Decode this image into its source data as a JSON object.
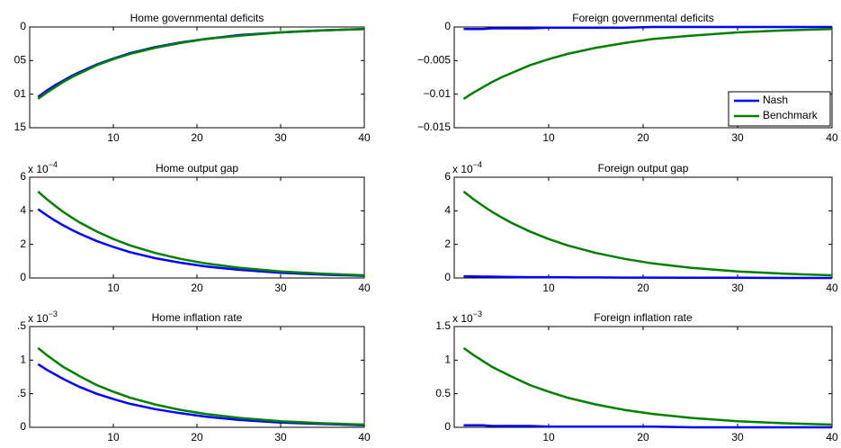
{
  "chart_data": [
    {
      "type": "line",
      "title": "Home governmental deficits",
      "x": [
        1,
        2,
        3,
        4,
        5,
        6,
        8,
        10,
        12,
        15,
        18,
        21,
        25,
        30,
        35,
        40
      ],
      "series": [
        {
          "color": "#0000ff",
          "values": [
            -0.0104,
            -0.0095,
            -0.0087,
            -0.008,
            -0.0073,
            -0.0067,
            -0.0056,
            -0.0047,
            -0.0039,
            -0.003,
            -0.0023,
            -0.0018,
            -0.0012,
            -0.0008,
            -0.0005,
            -0.0003
          ]
        },
        {
          "color": "#008000",
          "values": [
            -0.0107,
            -0.0098,
            -0.009,
            -0.0082,
            -0.0075,
            -0.0069,
            -0.0057,
            -0.0048,
            -0.004,
            -0.0031,
            -0.0024,
            -0.0018,
            -0.0013,
            -0.0008,
            -0.0005,
            -0.0003
          ]
        }
      ],
      "xlim": [
        0,
        40
      ],
      "xticks": [
        10,
        20,
        30,
        40
      ],
      "ylim": [
        -0.015,
        0
      ],
      "yticks": [
        {
          "value": -0.015,
          "label": "15"
        },
        {
          "value": -0.01,
          "label": "01"
        },
        {
          "value": -0.005,
          "label": "05"
        },
        0
      ]
    },
    {
      "type": "line",
      "title": "Foreign governmental deficits",
      "x": [
        1,
        2,
        3,
        4,
        5,
        6,
        8,
        10,
        12,
        15,
        18,
        21,
        25,
        30,
        35,
        40
      ],
      "series": [
        {
          "name": "Nash",
          "color": "#0000ff",
          "values": [
            -0.0003,
            -0.0003,
            -0.0003,
            -0.0002,
            -0.0002,
            -0.0002,
            -0.0002,
            -0.0001,
            -0.0001,
            -0.0001,
            -0.0001,
            0,
            0,
            0,
            0,
            0
          ]
        },
        {
          "name": "Benchmark",
          "color": "#008000",
          "values": [
            -0.0107,
            -0.0098,
            -0.009,
            -0.0082,
            -0.0075,
            -0.0069,
            -0.0057,
            -0.0048,
            -0.004,
            -0.0031,
            -0.0024,
            -0.0018,
            -0.0013,
            -0.0008,
            -0.0005,
            -0.0003
          ]
        }
      ],
      "xlim": [
        0,
        40
      ],
      "xticks": [
        10,
        20,
        30,
        40
      ],
      "ylim": [
        -0.015,
        0
      ],
      "yticks": [
        {
          "value": -0.015,
          "label": "−0.015"
        },
        {
          "value": -0.01,
          "label": "−0.01"
        },
        {
          "value": -0.005,
          "label": "−0.005"
        },
        0
      ],
      "legend": "southeast"
    },
    {
      "type": "line",
      "title": "Home output gap",
      "exponent_base": "x 10",
      "exponent_power": "−4",
      "x": [
        1,
        2,
        3,
        4,
        5,
        6,
        8,
        10,
        12,
        15,
        18,
        21,
        25,
        30,
        35,
        40
      ],
      "series": [
        {
          "color": "#0000ff",
          "values": [
            4.1,
            3.75,
            3.43,
            3.14,
            2.87,
            2.63,
            2.2,
            1.85,
            1.54,
            1.18,
            0.91,
            0.69,
            0.49,
            0.31,
            0.2,
            0.13
          ]
        },
        {
          "color": "#008000",
          "values": [
            5.15,
            4.71,
            4.31,
            3.94,
            3.61,
            3.3,
            2.77,
            2.32,
            1.94,
            1.49,
            1.14,
            0.87,
            0.61,
            0.39,
            0.25,
            0.16
          ]
        }
      ],
      "xlim": [
        0,
        40
      ],
      "xticks": [
        10,
        20,
        30,
        40
      ],
      "ylim": [
        0,
        6
      ],
      "yticks": [
        0,
        2,
        4,
        6
      ]
    },
    {
      "type": "line",
      "title": "Foreign output gap",
      "exponent_base": "x 10",
      "exponent_power": "−4",
      "x": [
        1,
        2,
        3,
        4,
        5,
        6,
        8,
        10,
        12,
        15,
        18,
        21,
        25,
        30,
        35,
        40
      ],
      "series": [
        {
          "color": "#0000ff",
          "values": [
            0.1,
            0.09,
            0.08,
            0.08,
            0.07,
            0.06,
            0.05,
            0.05,
            0.04,
            0.03,
            0.02,
            0.02,
            0.01,
            0.01,
            0,
            0
          ]
        },
        {
          "color": "#008000",
          "values": [
            5.15,
            4.71,
            4.31,
            3.94,
            3.61,
            3.3,
            2.77,
            2.32,
            1.94,
            1.49,
            1.14,
            0.87,
            0.61,
            0.39,
            0.25,
            0.16
          ]
        }
      ],
      "xlim": [
        0,
        40
      ],
      "xticks": [
        10,
        20,
        30,
        40
      ],
      "ylim": [
        0,
        6
      ],
      "yticks": [
        0,
        2,
        4,
        6
      ]
    },
    {
      "type": "line",
      "title": "Home inflation rate",
      "exponent_base": "x 10",
      "exponent_power": "−3",
      "x": [
        1,
        2,
        3,
        4,
        5,
        6,
        8,
        10,
        12,
        15,
        18,
        21,
        25,
        30,
        35,
        40
      ],
      "series": [
        {
          "color": "#0000ff",
          "values": [
            0.94,
            0.86,
            0.79,
            0.72,
            0.66,
            0.6,
            0.5,
            0.42,
            0.35,
            0.27,
            0.21,
            0.16,
            0.11,
            0.07,
            0.05,
            0.03
          ]
        },
        {
          "color": "#008000",
          "values": [
            1.18,
            1.08,
            0.99,
            0.9,
            0.83,
            0.76,
            0.63,
            0.53,
            0.44,
            0.34,
            0.26,
            0.2,
            0.14,
            0.09,
            0.06,
            0.04
          ]
        }
      ],
      "xlim": [
        0,
        40
      ],
      "xticks": [
        10,
        20,
        30,
        40
      ],
      "ylim": [
        0,
        1.5
      ],
      "yticks": [
        0,
        {
          "value": 0.5,
          "label": ".5"
        },
        1,
        {
          "value": 1.5,
          "label": ".5"
        }
      ]
    },
    {
      "type": "line",
      "title": "Foreign inflation rate",
      "exponent_base": "x 10",
      "exponent_power": "−3",
      "x": [
        1,
        2,
        3,
        4,
        5,
        6,
        8,
        10,
        12,
        15,
        18,
        21,
        25,
        30,
        35,
        40
      ],
      "series": [
        {
          "color": "#0000ff",
          "values": [
            0.03,
            0.03,
            0.03,
            0.02,
            0.02,
            0.02,
            0.02,
            0.01,
            0.01,
            0.01,
            0.01,
            0.01,
            0,
            0,
            0,
            0
          ]
        },
        {
          "color": "#008000",
          "values": [
            1.18,
            1.08,
            0.99,
            0.9,
            0.83,
            0.76,
            0.63,
            0.53,
            0.44,
            0.34,
            0.26,
            0.2,
            0.14,
            0.09,
            0.06,
            0.04
          ]
        }
      ],
      "xlim": [
        0,
        40
      ],
      "xticks": [
        10,
        20,
        30,
        40
      ],
      "ylim": [
        0,
        1.5
      ],
      "yticks": [
        0,
        0.5,
        1,
        1.5
      ]
    }
  ]
}
